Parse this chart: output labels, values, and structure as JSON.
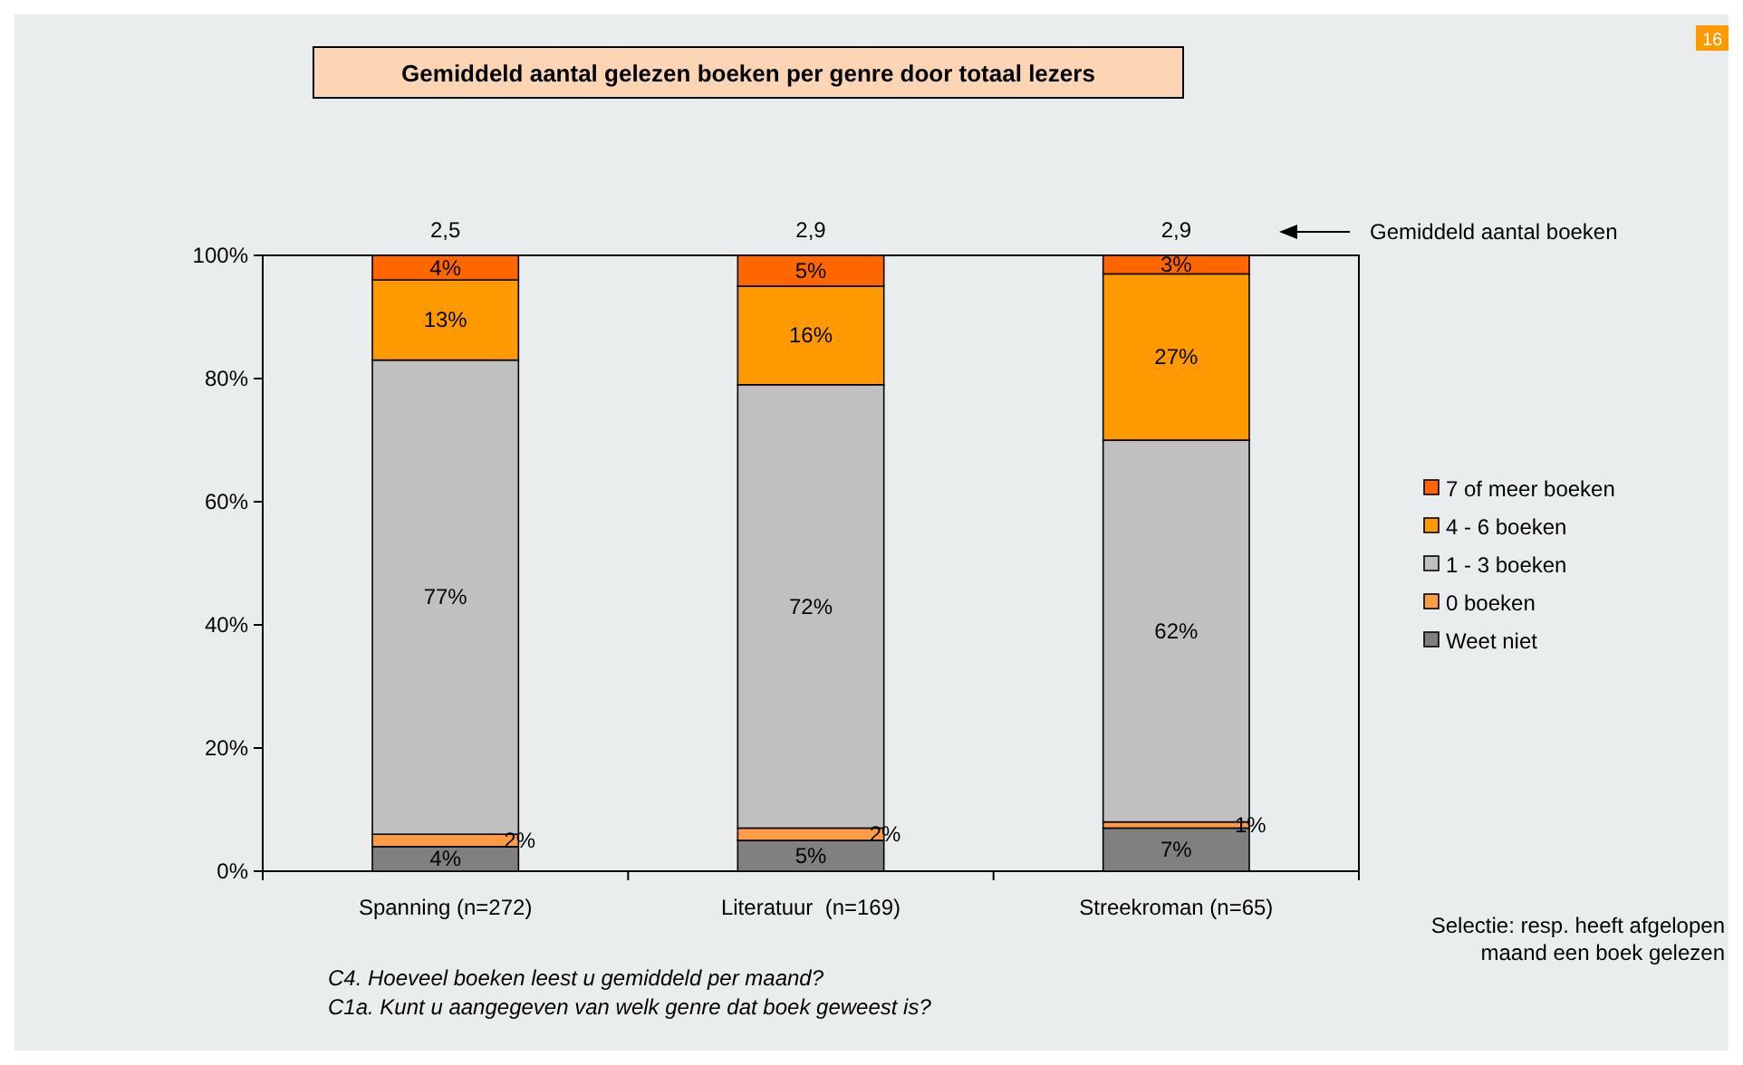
{
  "chart_data": {
    "type": "bar",
    "stacked": true,
    "title": "Gemiddeld aantal gelezen boeken per genre door totaal lezers",
    "categories": [
      "Spanning (n=272)",
      "Literatuur  (n=169)",
      "Streekroman (n=65)"
    ],
    "series": [
      {
        "name": "Weet niet",
        "color": "#808080",
        "values": [
          4,
          5,
          7
        ],
        "value_labels": [
          "4%",
          "5%",
          "7%"
        ]
      },
      {
        "name": "0 boeken",
        "color": "#ff9a45",
        "values": [
          2,
          2,
          1
        ],
        "value_labels": [
          "2%",
          "2%",
          "1%"
        ]
      },
      {
        "name": "1 - 3 boeken",
        "color": "#c0c0c0",
        "values": [
          77,
          72,
          62
        ],
        "value_labels": [
          "77%",
          "72%",
          "62%"
        ]
      },
      {
        "name": "4 - 6 boeken",
        "color": "#ff9900",
        "values": [
          13,
          16,
          27
        ],
        "value_labels": [
          "13%",
          "16%",
          "27%"
        ]
      },
      {
        "name": "7 of meer boeken",
        "color": "#ff6600",
        "values": [
          4,
          5,
          3
        ],
        "value_labels": [
          "4%",
          "5%",
          "3%"
        ]
      }
    ],
    "ylim": [
      0,
      100
    ],
    "yticks": [
      {
        "value": 0,
        "label": "0%"
      },
      {
        "value": 20,
        "label": "20%"
      },
      {
        "value": 40,
        "label": "40%"
      },
      {
        "value": 60,
        "label": "60%"
      },
      {
        "value": 80,
        "label": "80%"
      },
      {
        "value": 100,
        "label": "100%"
      }
    ],
    "legend": "right",
    "grid": false,
    "annotations": [
      "2,5",
      "2,9",
      "2,9",
      "Gemiddeld aantal boeken",
      "16",
      "Selectie: resp. heeft afgelopen maand een boek gelezen",
      "C4. Hoeveel boeken leest u gemiddeld per maand?",
      "C1a. Kunt u aangegeven van welk genre dat boek geweest is?"
    ]
  }
}
